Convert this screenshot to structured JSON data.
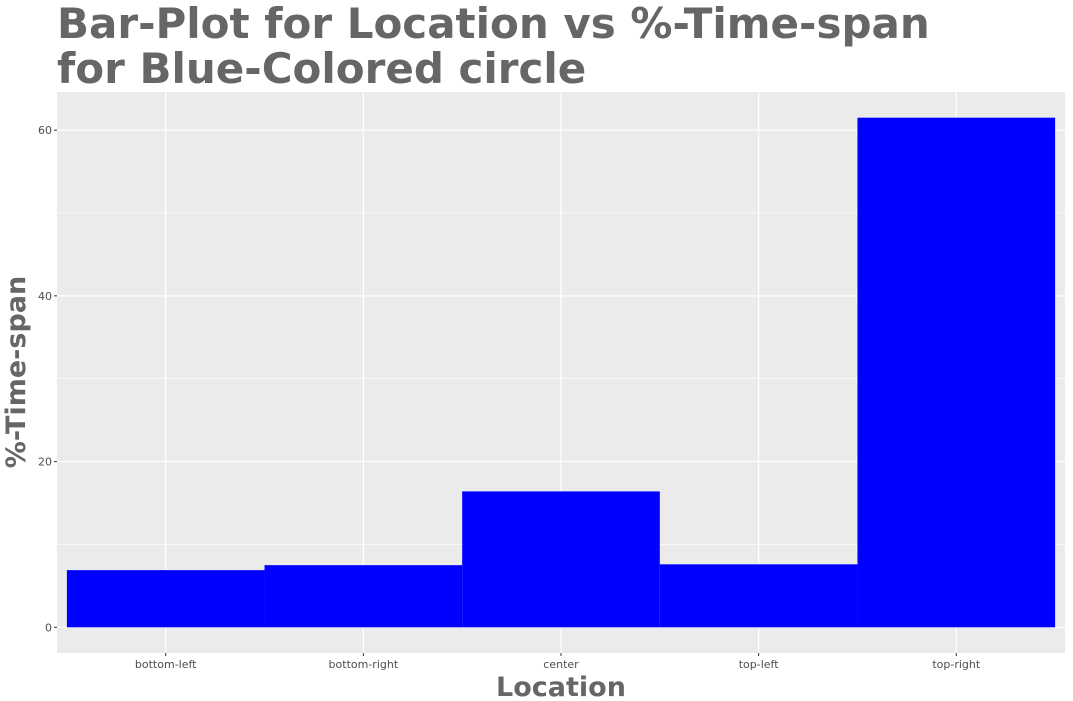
{
  "chart_data": {
    "type": "bar",
    "title_lines": [
      "Bar-Plot for Location vs %-Time-span",
      "for Blue-Colored circle"
    ],
    "xlabel": "Location",
    "ylabel": "%-Time-span",
    "categories": [
      "bottom-left",
      "bottom-right",
      "center",
      "top-left",
      "top-right"
    ],
    "values": [
      6.9,
      7.5,
      16.4,
      7.6,
      61.5
    ],
    "ylim": [
      -3.1,
      64.6
    ],
    "yticks": [
      0,
      20,
      40,
      60
    ],
    "bar_color": "#0000ff",
    "panel_background": "#ebebeb",
    "grid": true,
    "legend": "none"
  }
}
